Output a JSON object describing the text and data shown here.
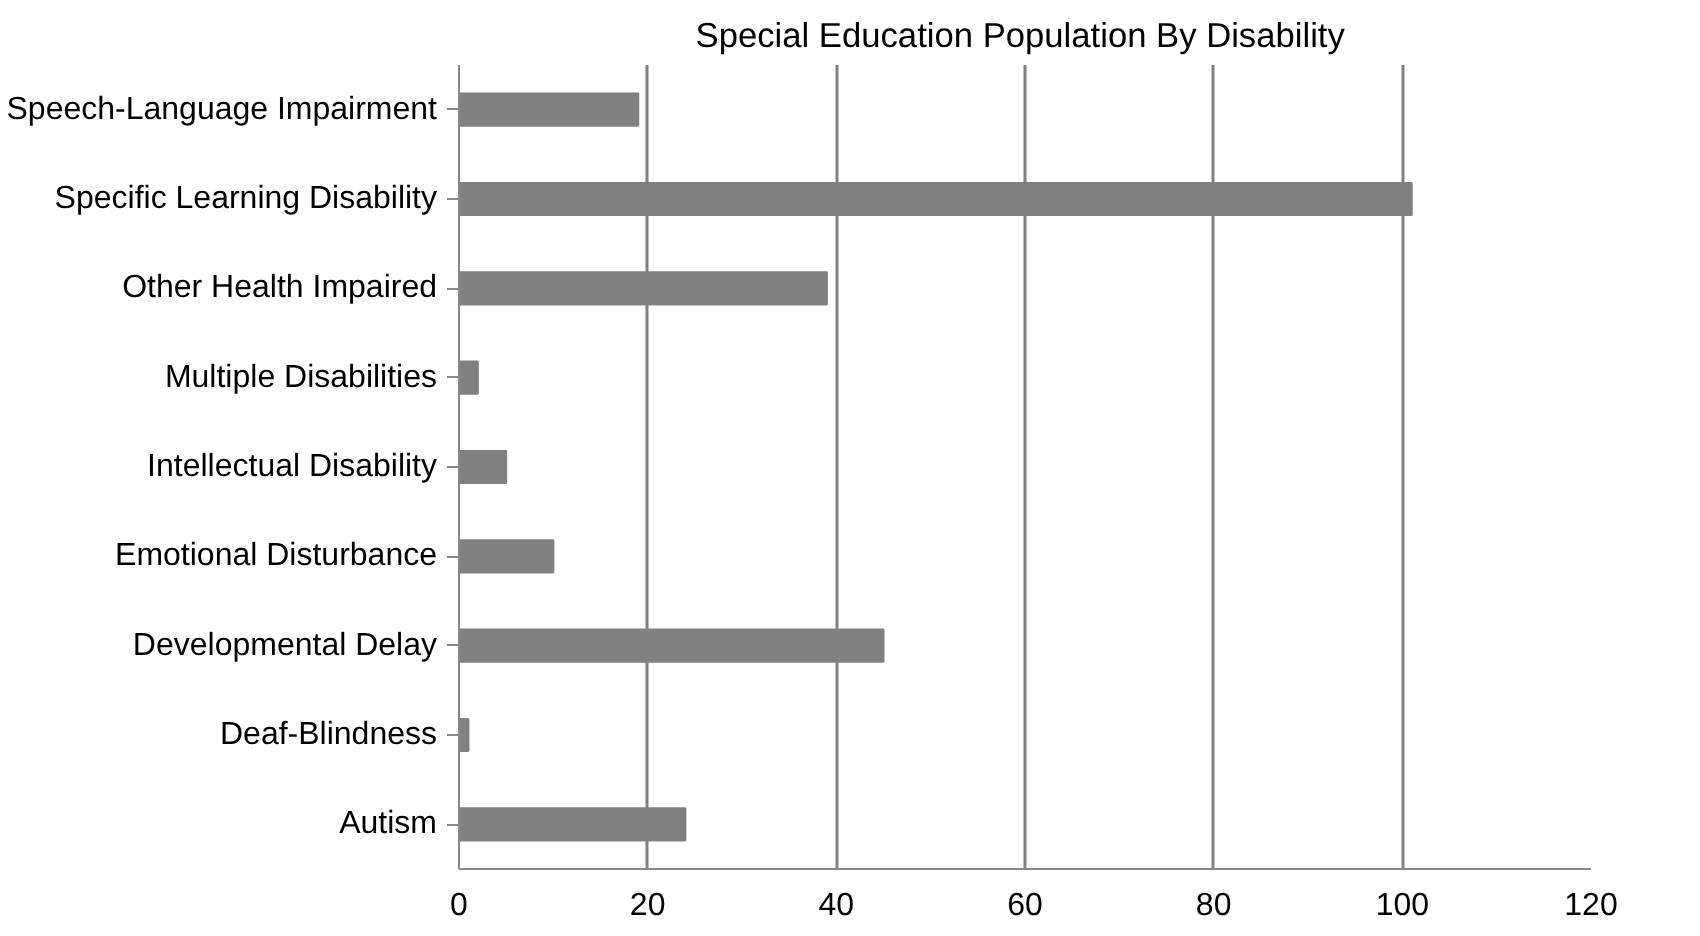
{
  "chart_data": {
    "type": "bar",
    "orientation": "horizontal",
    "title": "Special Education  Population By Disability",
    "categories": [
      "Speech-Language Impairment",
      "Specific Learning Disability",
      "Other Health Impaired",
      "Multiple Disabilities",
      "Intellectual Disability",
      "Emotional Disturbance",
      "Developmental Delay",
      "Deaf-Blindness",
      "Autism"
    ],
    "values": [
      19,
      101,
      39,
      2,
      5,
      10,
      45,
      1,
      24
    ],
    "color": "#808080",
    "xlim": [
      0,
      120
    ],
    "xticks": [
      0,
      20,
      40,
      60,
      80,
      100,
      120
    ],
    "grid": "x"
  }
}
